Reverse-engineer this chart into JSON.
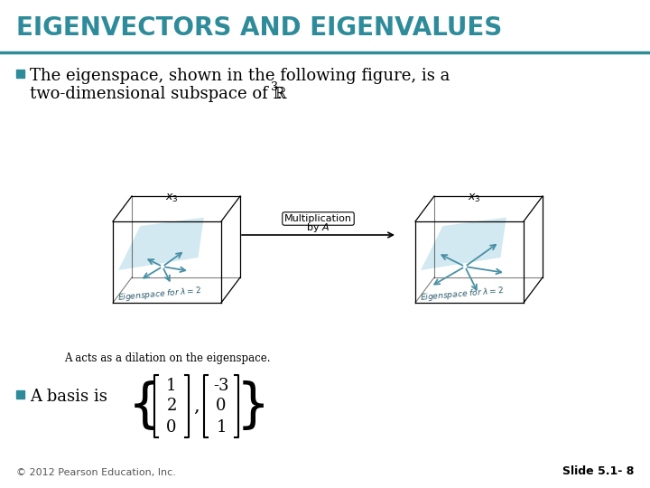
{
  "title": "EIGENVECTORS AND EIGENVALUES",
  "title_color": "#2e8b9a",
  "title_bg": "#ffffff",
  "header_line_color": "#2e8b9a",
  "background_color": "#ffffff",
  "bullet_color": "#2e8b9a",
  "text_color": "#000000",
  "bullet1": "The eigenspace, shown in the following figure, is a\ntwo-dimensional subspace of ℝ",
  "superscript": "3",
  "bullet2": "A basis is",
  "matrix1": [
    "1",
    "2",
    "0"
  ],
  "matrix2": [
    "-3",
    "0",
    "1"
  ],
  "caption": "A acts as a dilation on the eigenspace.",
  "footer_left": "© 2012 Pearson Education, Inc.",
  "footer_right": "Slide 5.1- 8",
  "footer_color": "#555555"
}
